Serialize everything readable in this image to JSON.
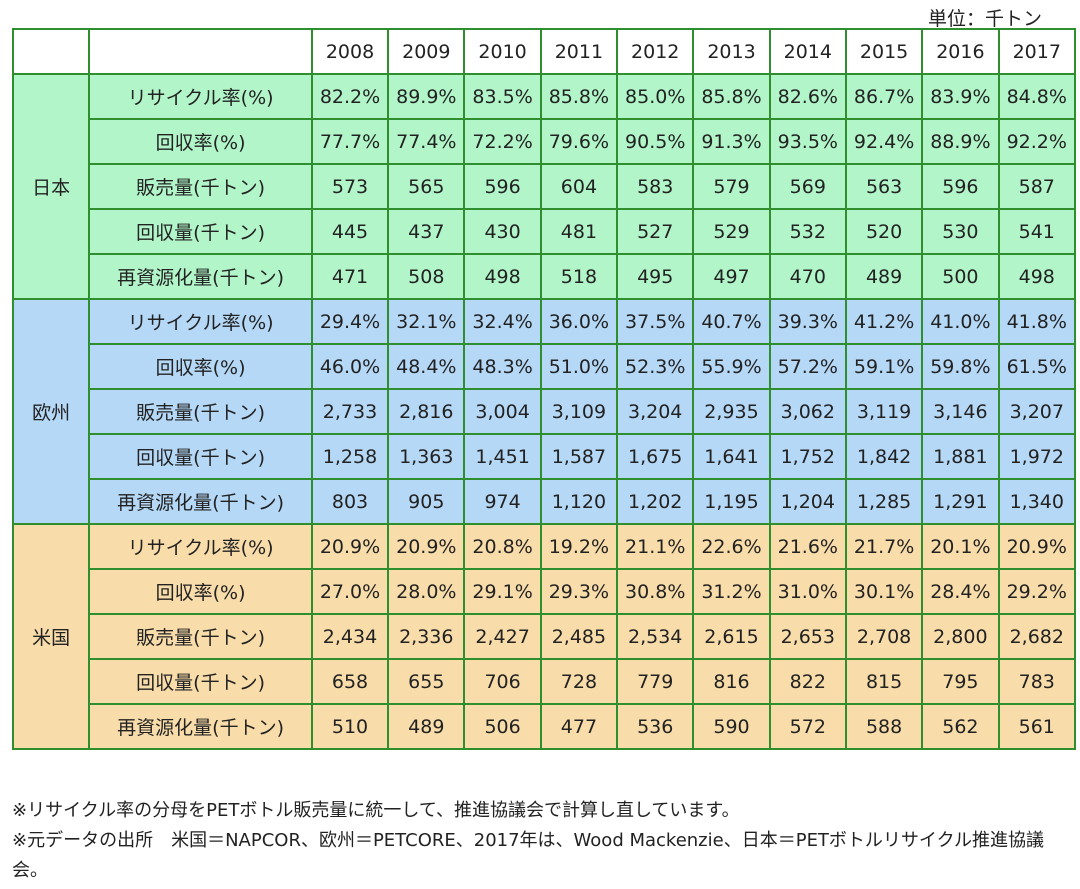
{
  "unit_label": "単位：千トン",
  "years": [
    "2008",
    "2009",
    "2010",
    "2011",
    "2012",
    "2013",
    "2014",
    "2015",
    "2016",
    "2017"
  ],
  "groups": [
    {
      "region": "日本",
      "color": "#b1f5c9",
      "rows": [
        {
          "label": "リサイクル率(%)",
          "values": [
            "82.2%",
            "89.9%",
            "83.5%",
            "85.8%",
            "85.0%",
            "85.8%",
            "82.6%",
            "86.7%",
            "83.9%",
            "84.8%"
          ]
        },
        {
          "label": "回収率(%)",
          "values": [
            "77.7%",
            "77.4%",
            "72.2%",
            "79.6%",
            "90.5%",
            "91.3%",
            "93.5%",
            "92.4%",
            "88.9%",
            "92.2%"
          ]
        },
        {
          "label": "販売量(千トン)",
          "values": [
            "573",
            "565",
            "596",
            "604",
            "583",
            "579",
            "569",
            "563",
            "596",
            "587"
          ]
        },
        {
          "label": "回収量(千トン)",
          "values": [
            "445",
            "437",
            "430",
            "481",
            "527",
            "529",
            "532",
            "520",
            "530",
            "541"
          ]
        },
        {
          "label": "再資源化量(千トン)",
          "values": [
            "471",
            "508",
            "498",
            "518",
            "495",
            "497",
            "470",
            "489",
            "500",
            "498"
          ]
        }
      ]
    },
    {
      "region": "欧州",
      "color": "#b5d8f7",
      "rows": [
        {
          "label": "リサイクル率(%)",
          "values": [
            "29.4%",
            "32.1%",
            "32.4%",
            "36.0%",
            "37.5%",
            "40.7%",
            "39.3%",
            "41.2%",
            "41.0%",
            "41.8%"
          ]
        },
        {
          "label": "回収率(%)",
          "values": [
            "46.0%",
            "48.4%",
            "48.3%",
            "51.0%",
            "52.3%",
            "55.9%",
            "57.2%",
            "59.1%",
            "59.8%",
            "61.5%"
          ]
        },
        {
          "label": "販売量(千トン)",
          "values": [
            "2,733",
            "2,816",
            "3,004",
            "3,109",
            "3,204",
            "2,935",
            "3,062",
            "3,119",
            "3,146",
            "3,207"
          ]
        },
        {
          "label": "回収量(千トン)",
          "values": [
            "1,258",
            "1,363",
            "1,451",
            "1,587",
            "1,675",
            "1,641",
            "1,752",
            "1,842",
            "1,881",
            "1,972"
          ]
        },
        {
          "label": "再資源化量(千トン)",
          "values": [
            "803",
            "905",
            "974",
            "1,120",
            "1,202",
            "1,195",
            "1,204",
            "1,285",
            "1,291",
            "1,340"
          ]
        }
      ]
    },
    {
      "region": "米国",
      "color": "#f8dcaa",
      "rows": [
        {
          "label": "リサイクル率(%)",
          "values": [
            "20.9%",
            "20.9%",
            "20.8%",
            "19.2%",
            "21.1%",
            "22.6%",
            "21.6%",
            "21.7%",
            "20.1%",
            "20.9%"
          ]
        },
        {
          "label": "回収率(%)",
          "values": [
            "27.0%",
            "28.0%",
            "29.1%",
            "29.3%",
            "30.8%",
            "31.2%",
            "31.0%",
            "30.1%",
            "28.4%",
            "29.2%"
          ]
        },
        {
          "label": "販売量(千トン)",
          "values": [
            "2,434",
            "2,336",
            "2,427",
            "2,485",
            "2,534",
            "2,615",
            "2,653",
            "2,708",
            "2,800",
            "2,682"
          ]
        },
        {
          "label": "回収量(千トン)",
          "values": [
            "658",
            "655",
            "706",
            "728",
            "779",
            "816",
            "822",
            "815",
            "795",
            "783"
          ]
        },
        {
          "label": "再資源化量(千トン)",
          "values": [
            "510",
            "489",
            "506",
            "477",
            "536",
            "590",
            "572",
            "588",
            "562",
            "561"
          ]
        }
      ]
    }
  ],
  "notes": [
    "※リサイクル率の分母をPETボトル販売量に統一して、推進協議会で計算し直しています。",
    "※元データの出所　米国＝NAPCOR、欧州＝PETCORE、2017年は、Wood Mackenzie、日本＝PETボトルリサイクル推進協議会。"
  ]
}
